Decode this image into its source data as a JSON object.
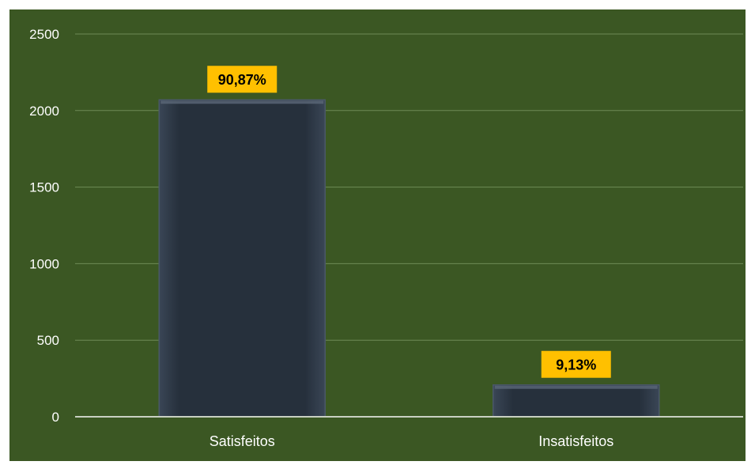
{
  "colors": {
    "background": "#3B5723",
    "bar": "#26303C",
    "bar_edge": "#4A5868",
    "gridline": "#6E8A56",
    "axis_line": "#C9D0C2",
    "tick_text": "#FFFFFF",
    "label_bg": "#FFC000",
    "label_text": "#000000"
  },
  "chart_data": {
    "type": "bar",
    "categories": [
      "Satisfeitos",
      "Insatisfeitos"
    ],
    "values": [
      2070,
      208
    ],
    "data_labels": [
      "90,87%",
      "9,13%"
    ],
    "ylim": [
      0,
      2500
    ],
    "yticks": [
      0,
      500,
      1000,
      1500,
      2000,
      2500
    ],
    "grid": true,
    "title": "",
    "xlabel": "",
    "ylabel": ""
  }
}
